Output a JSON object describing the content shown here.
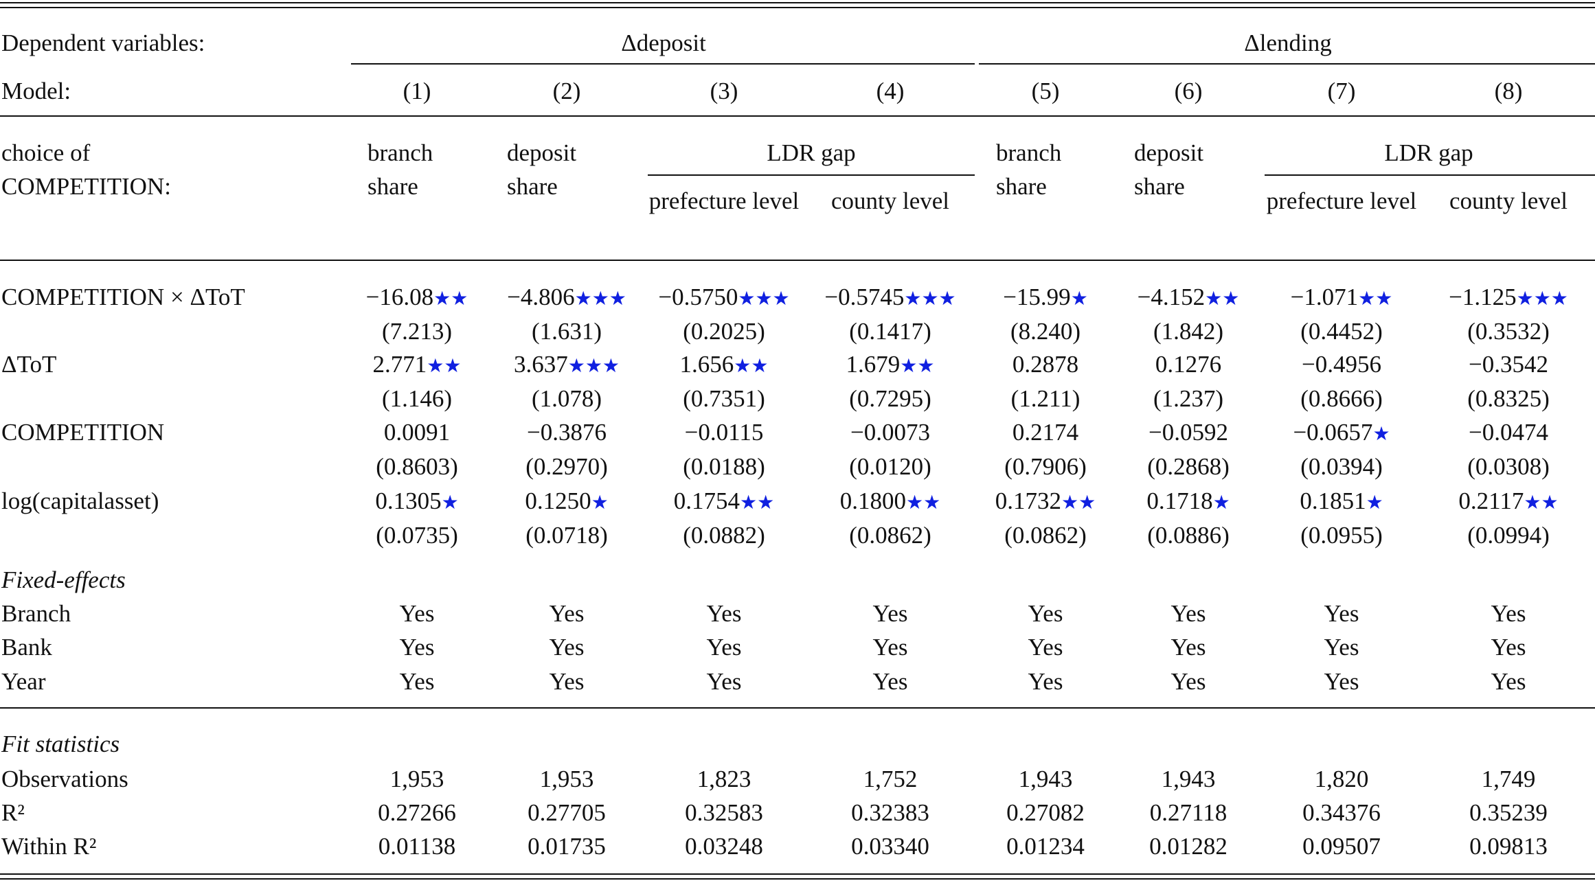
{
  "header": {
    "dependent_label": "Dependent variables:",
    "groups": [
      "Δdeposit",
      "Δlending"
    ],
    "model_label": "Model:",
    "models": [
      "(1)",
      "(2)",
      "(3)",
      "(4)",
      "(5)",
      "(6)",
      "(7)",
      "(8)"
    ]
  },
  "competition_choice": {
    "label": "choice of COMPETITION:",
    "spanners": [
      "LDR gap",
      "LDR gap"
    ],
    "columns": [
      "branch share",
      "deposit share",
      "prefecture level",
      "county level",
      "branch share",
      "deposit share",
      "prefecture level",
      "county level"
    ]
  },
  "coefficients": [
    {
      "label": "COMPETITION × ΔToT",
      "estimates": [
        {
          "value": "−16.08",
          "stars": "★★"
        },
        {
          "value": "−4.806",
          "stars": "★★★"
        },
        {
          "value": "−0.5750",
          "stars": "★★★"
        },
        {
          "value": "−0.5745",
          "stars": "★★★"
        },
        {
          "value": "−15.99",
          "stars": "★"
        },
        {
          "value": "−4.152",
          "stars": "★★"
        },
        {
          "value": "−1.071",
          "stars": "★★"
        },
        {
          "value": "−1.125",
          "stars": "★★★"
        }
      ],
      "se": [
        "(7.213)",
        "(1.631)",
        "(0.2025)",
        "(0.1417)",
        "(8.240)",
        "(1.842)",
        "(0.4452)",
        "(0.3532)"
      ]
    },
    {
      "label": "ΔToT",
      "estimates": [
        {
          "value": "2.771",
          "stars": "★★"
        },
        {
          "value": "3.637",
          "stars": "★★★"
        },
        {
          "value": "1.656",
          "stars": "★★"
        },
        {
          "value": "1.679",
          "stars": "★★"
        },
        {
          "value": "0.2878"
        },
        {
          "value": "0.1276"
        },
        {
          "value": "−0.4956"
        },
        {
          "value": "−0.3542"
        }
      ],
      "se": [
        "(1.146)",
        "(1.078)",
        "(0.7351)",
        "(0.7295)",
        "(1.211)",
        "(1.237)",
        "(0.8666)",
        "(0.8325)"
      ]
    },
    {
      "label": "COMPETITION",
      "estimates": [
        {
          "value": "0.0091"
        },
        {
          "value": "−0.3876"
        },
        {
          "value": "−0.0115"
        },
        {
          "value": "−0.0073"
        },
        {
          "value": "0.2174"
        },
        {
          "value": "−0.0592"
        },
        {
          "value": "−0.0657",
          "stars": "★"
        },
        {
          "value": "−0.0474"
        }
      ],
      "se": [
        "(0.8603)",
        "(0.2970)",
        "(0.0188)",
        "(0.0120)",
        "(0.7906)",
        "(0.2868)",
        "(0.0394)",
        "(0.0308)"
      ]
    },
    {
      "label": "log(capitalasset)",
      "estimates": [
        {
          "value": "0.1305",
          "stars": "★"
        },
        {
          "value": "0.1250",
          "stars": "★"
        },
        {
          "value": "0.1754",
          "stars": "★★"
        },
        {
          "value": "0.1800",
          "stars": "★★"
        },
        {
          "value": "0.1732",
          "stars": "★★"
        },
        {
          "value": "0.1718",
          "stars": "★"
        },
        {
          "value": "0.1851",
          "stars": "★"
        },
        {
          "value": "0.2117",
          "stars": "★★"
        }
      ],
      "se": [
        "(0.0735)",
        "(0.0718)",
        "(0.0882)",
        "(0.0862)",
        "(0.0862)",
        "(0.0886)",
        "(0.0955)",
        "(0.0994)"
      ]
    }
  ],
  "fixed_effects": {
    "title": "Fixed-effects",
    "rows": [
      {
        "label": "Branch",
        "values": [
          "Yes",
          "Yes",
          "Yes",
          "Yes",
          "Yes",
          "Yes",
          "Yes",
          "Yes"
        ]
      },
      {
        "label": "Bank",
        "values": [
          "Yes",
          "Yes",
          "Yes",
          "Yes",
          "Yes",
          "Yes",
          "Yes",
          "Yes"
        ]
      },
      {
        "label": "Year",
        "values": [
          "Yes",
          "Yes",
          "Yes",
          "Yes",
          "Yes",
          "Yes",
          "Yes",
          "Yes"
        ]
      }
    ]
  },
  "fit_statistics": {
    "title": "Fit statistics",
    "rows": [
      {
        "label": "Observations",
        "values": [
          "1,953",
          "1,953",
          "1,823",
          "1,752",
          "1,943",
          "1,943",
          "1,820",
          "1,749"
        ]
      },
      {
        "label": "R²",
        "values": [
          "0.27266",
          "0.27705",
          "0.32583",
          "0.32383",
          "0.27082",
          "0.27118",
          "0.34376",
          "0.35239"
        ]
      },
      {
        "label": "Within R²",
        "values": [
          "0.01138",
          "0.01735",
          "0.03248",
          "0.03340",
          "0.01234",
          "0.01282",
          "0.09507",
          "0.09813"
        ]
      }
    ]
  }
}
